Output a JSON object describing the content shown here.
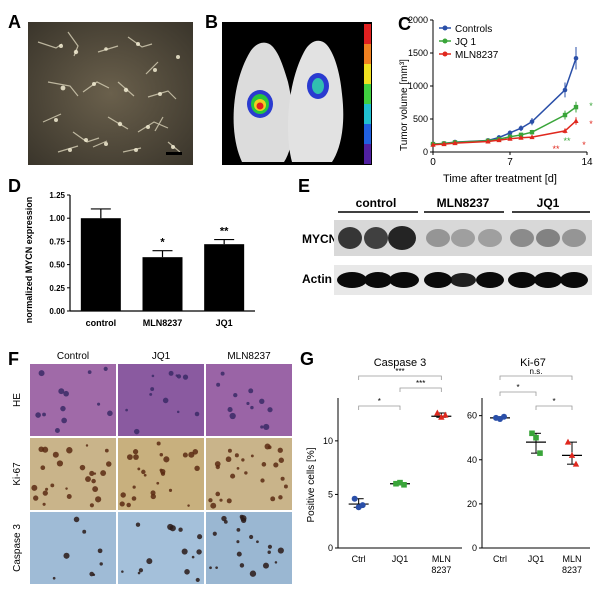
{
  "panel_labels": [
    "A",
    "B",
    "C",
    "D",
    "E",
    "F",
    "G"
  ],
  "chart_data": [
    {
      "panel": "C",
      "type": "line",
      "xlabel": "Time after treatment [d]",
      "ylabel": "Tumor volume [mm³]",
      "xticks": [
        "0",
        "7",
        "14"
      ],
      "yticks": [
        "0",
        "500",
        "1000",
        "1500",
        "2000"
      ],
      "xlim": [
        0,
        14
      ],
      "ylim": [
        0,
        2000
      ],
      "legend_position": "top-left",
      "series": [
        {
          "name": "Controls",
          "color": "#2a4fa8",
          "x": [
            0,
            1,
            2,
            5,
            6,
            7,
            8,
            9,
            12,
            13
          ],
          "y": [
            120,
            130,
            150,
            175,
            220,
            290,
            360,
            460,
            940,
            1420
          ]
        },
        {
          "name": "JQ 1",
          "color": "#3aa53a",
          "x": [
            0,
            1,
            2,
            5,
            6,
            7,
            8,
            9,
            12,
            13
          ],
          "y": [
            120,
            128,
            145,
            170,
            195,
            230,
            260,
            300,
            560,
            680
          ]
        },
        {
          "name": "MLN8237",
          "color": "#e0281e",
          "x": [
            0,
            1,
            2,
            5,
            6,
            7,
            8,
            9,
            12,
            13
          ],
          "y": [
            110,
            120,
            135,
            160,
            180,
            200,
            215,
            225,
            320,
            470
          ]
        }
      ],
      "annotations": [
        "*",
        "*",
        "**",
        "**",
        "*"
      ]
    },
    {
      "panel": "D",
      "type": "bar",
      "ylabel": "normalized MYCN expression",
      "categories": [
        "control",
        "MLN8237",
        "JQ1"
      ],
      "values": [
        1.0,
        0.58,
        0.72
      ],
      "errors": [
        0.1,
        0.07,
        0.05
      ],
      "significance": [
        "",
        "*",
        "**"
      ],
      "yticks": [
        "0.00",
        "0.25",
        "0.50",
        "0.75",
        "1.00",
        "1.25"
      ],
      "ylim": [
        0,
        1.25
      ]
    },
    {
      "panel": "G-left",
      "type": "scatter",
      "title": "Caspase 3",
      "ylabel": "Positive  cells [%]",
      "categories": [
        "Ctrl",
        "JQ1",
        "MLN\n8237"
      ],
      "yticks": [
        "0",
        "5",
        "10"
      ],
      "ylim": [
        0,
        14
      ],
      "series": [
        {
          "name": "Ctrl",
          "color": "#2a4fa8",
          "values": [
            4.6,
            3.8,
            4.0
          ],
          "mean": 4.1
        },
        {
          "name": "JQ1",
          "color": "#3aa53a",
          "values": [
            6.0,
            6.1,
            5.9
          ],
          "mean": 6.0
        },
        {
          "name": "MLN8237",
          "color": "#e0281e",
          "values": [
            12.6,
            12.2,
            12.4
          ],
          "mean": 12.3
        }
      ],
      "significance": [
        "*",
        "***",
        "***"
      ]
    },
    {
      "panel": "G-right",
      "type": "scatter",
      "title": "Ki-67",
      "categories": [
        "Ctrl",
        "JQ1",
        "MLN\n8237"
      ],
      "yticks": [
        "0",
        "20",
        "40",
        "60"
      ],
      "ylim": [
        0,
        68
      ],
      "series": [
        {
          "name": "Ctrl",
          "color": "#2a4fa8",
          "values": [
            59,
            58.5,
            59.5
          ],
          "mean": 59
        },
        {
          "name": "JQ1",
          "color": "#3aa53a",
          "values": [
            52,
            50,
            43
          ],
          "mean": 48
        },
        {
          "name": "MLN8237",
          "color": "#e0281e",
          "values": [
            48,
            42,
            38
          ],
          "mean": 42
        }
      ],
      "significance": [
        "*",
        "*",
        "n.s."
      ]
    }
  ],
  "blot": {
    "groups": [
      "control",
      "MLN8237",
      "JQ1"
    ],
    "rows": [
      "MYCN",
      "Actin"
    ]
  },
  "histology": {
    "columns": [
      "Control",
      "JQ1",
      "MLN8237"
    ],
    "rows": [
      "HE",
      "Ki-67",
      "Caspase 3"
    ]
  },
  "colors": {
    "controls": "#2a4fa8",
    "jq1": "#3aa53a",
    "mln8237": "#e0281e"
  }
}
